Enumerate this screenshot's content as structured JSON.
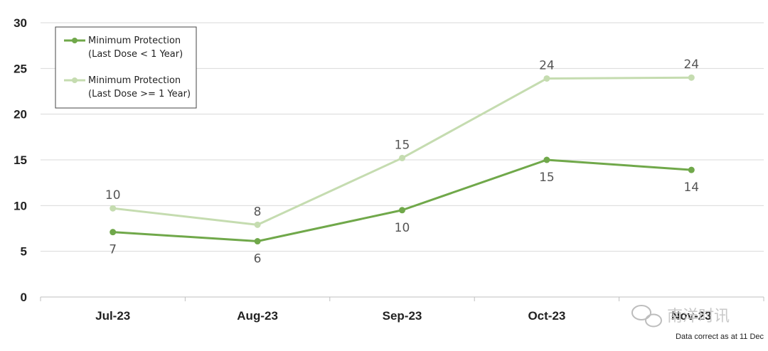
{
  "chart_data": {
    "type": "line",
    "categories": [
      "Jul-23",
      "Aug-23",
      "Sep-23",
      "Oct-23",
      "Nov-23"
    ],
    "ylim": [
      0,
      30
    ],
    "yticks": [
      0,
      5,
      10,
      15,
      20,
      25,
      30
    ],
    "grid": true,
    "legend_position": "top-left",
    "series": [
      {
        "name": "Minimum Protection (Last Dose < 1 Year)",
        "legend_lines": [
          "Minimum Protection",
          "(Last Dose < 1 Year)"
        ],
        "values": [
          7.1,
          6.1,
          9.5,
          15.0,
          13.9
        ],
        "labels": [
          "7",
          "6",
          "10",
          "15",
          "14"
        ],
        "label_position": "below",
        "color": "#70a84a"
      },
      {
        "name": "Minimum Protection (Last Dose >= 1 Year)",
        "legend_lines": [
          "Minimum Protection",
          "(Last Dose >= 1 Year)"
        ],
        "values": [
          9.7,
          7.9,
          15.2,
          23.9,
          24.0
        ],
        "labels": [
          "10",
          "8",
          "15",
          "24",
          "24"
        ],
        "label_position": "above",
        "color": "#c5dcb0"
      }
    ]
  },
  "footnote": "Data correct as at 11 Dec",
  "watermark": {
    "text": "南洋时讯",
    "icon": "wechat-icon"
  }
}
